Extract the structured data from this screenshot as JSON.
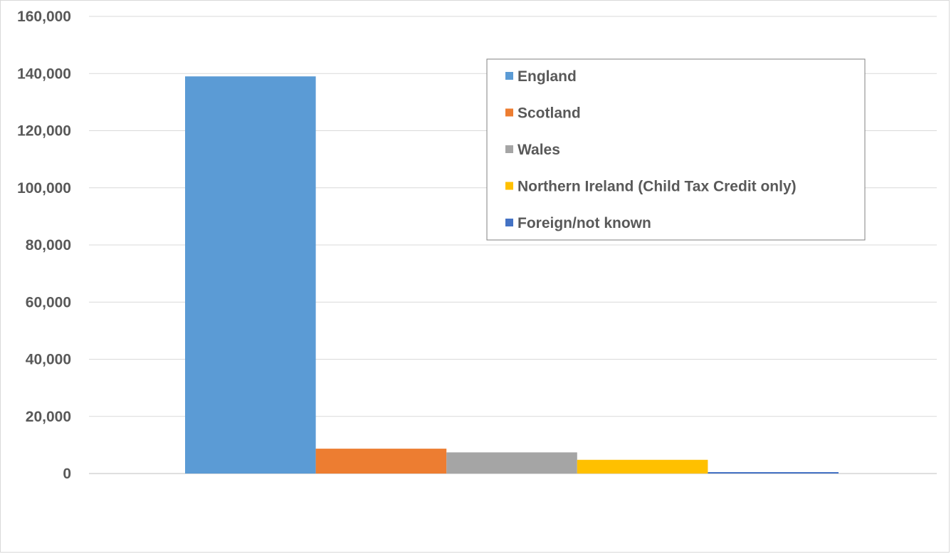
{
  "chart_data": {
    "type": "bar",
    "categories": [
      ""
    ],
    "series": [
      {
        "name": "England",
        "values": [
          139000
        ],
        "color": "#5B9BD5"
      },
      {
        "name": "Scotland",
        "values": [
          8700
        ],
        "color": "#ED7D31"
      },
      {
        "name": "Wales",
        "values": [
          7400
        ],
        "color": "#A5A5A5"
      },
      {
        "name": "Northern Ireland (Child Tax Credit only)",
        "values": [
          4800
        ],
        "color": "#FFC000"
      },
      {
        "name": "Foreign/not known",
        "values": [
          500
        ],
        "color": "#4472C4"
      }
    ],
    "ylim": [
      0,
      160000
    ],
    "yticks": [
      "0",
      "20,000",
      "40,000",
      "60,000",
      "80,000",
      "100,000",
      "120,000",
      "140,000",
      "160,000"
    ],
    "grid": true,
    "legend_position": "top-right"
  }
}
